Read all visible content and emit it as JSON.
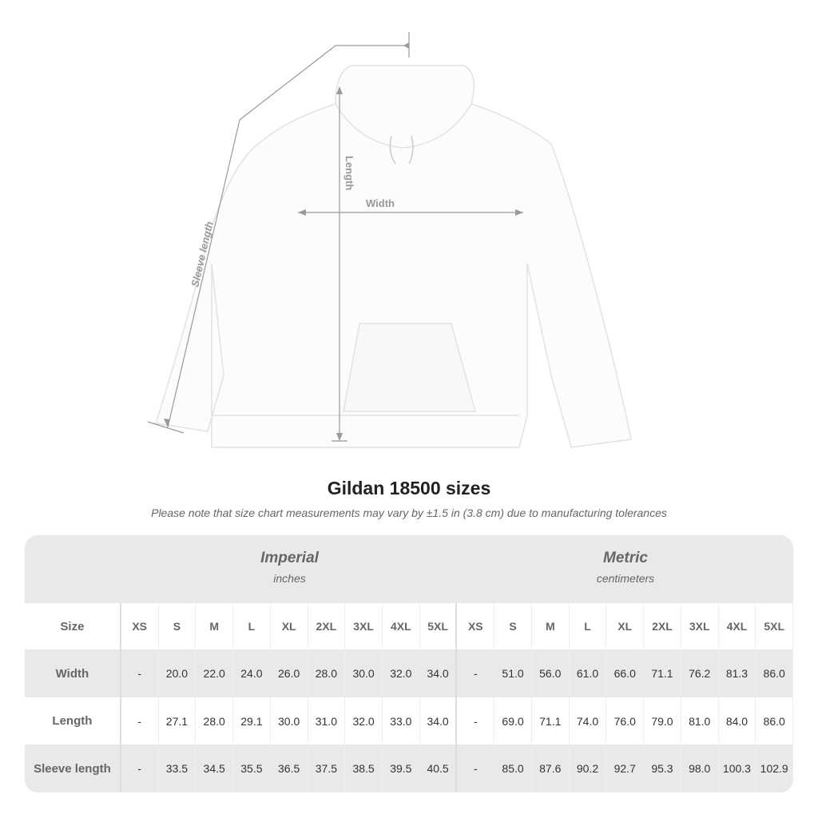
{
  "diagram": {
    "labels": {
      "sleeve": "Sleeve length",
      "length": "Length",
      "width": "Width"
    }
  },
  "title": "Gildan 18500 sizes",
  "note": "Please note that size chart measurements may vary by ±1.5 in (3.8 cm) due to manufacturing tolerances",
  "table": {
    "groups": [
      {
        "name": "Imperial",
        "unit": "inches"
      },
      {
        "name": "Metric",
        "unit": "centimeters"
      }
    ],
    "size_label": "Size",
    "sizes": [
      "XS",
      "S",
      "M",
      "L",
      "XL",
      "2XL",
      "3XL",
      "4XL",
      "5XL"
    ],
    "rows": [
      {
        "label": "Width",
        "imperial": [
          "-",
          "20.0",
          "22.0",
          "24.0",
          "26.0",
          "28.0",
          "30.0",
          "32.0",
          "34.0"
        ],
        "metric": [
          "-",
          "51.0",
          "56.0",
          "61.0",
          "66.0",
          "71.1",
          "76.2",
          "81.3",
          "86.0"
        ]
      },
      {
        "label": "Length",
        "imperial": [
          "-",
          "27.1",
          "28.0",
          "29.1",
          "30.0",
          "31.0",
          "32.0",
          "33.0",
          "34.0"
        ],
        "metric": [
          "-",
          "69.0",
          "71.1",
          "74.0",
          "76.0",
          "79.0",
          "81.0",
          "84.0",
          "86.0"
        ]
      },
      {
        "label": "Sleeve length",
        "imperial": [
          "-",
          "33.5",
          "34.5",
          "35.5",
          "36.5",
          "37.5",
          "38.5",
          "39.5",
          "40.5"
        ],
        "metric": [
          "-",
          "85.0",
          "87.6",
          "90.2",
          "92.7",
          "95.3",
          "98.0",
          "100.3",
          "102.9"
        ]
      }
    ]
  }
}
